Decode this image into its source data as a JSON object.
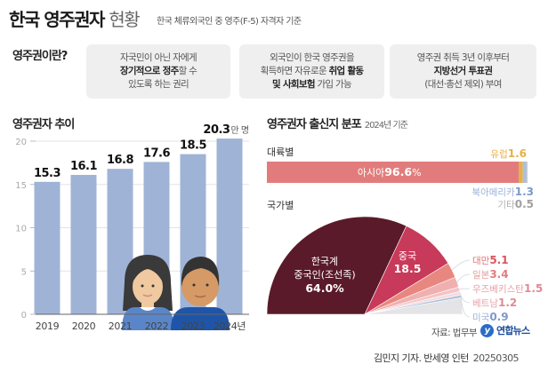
{
  "header": {
    "title_bold": "한국 영주권자",
    "title_light": "현황",
    "subtitle": "한국 체류외국인 중 영주(F-5) 자격자 기준"
  },
  "definition": {
    "label": "영주권이란?",
    "boxes": [
      {
        "line1": "자국민이 아닌 자에게",
        "line2_bold": "장기적으로 정주",
        "line2_rest": "할 수",
        "line3_bold": "",
        "line3_rest": "있도록 하는 권리"
      },
      {
        "line1": "외국인이 한국 영주권을",
        "line2_pre": "획득하면 자유로운 ",
        "line2_bold": "취업 활동",
        "line3_bold": "및 사회보험",
        "line3_rest": " 가입 가능"
      },
      {
        "line1": "영주권 취득 3년 이후부터",
        "line2_bold": "지방선거 투표권",
        "line3_rest": "(대선·총선 제외) 부여"
      }
    ]
  },
  "colors": {
    "bar": "#9fb3d6",
    "asia": "#e27c7c",
    "europe": "#e6b04a",
    "north_america": "#a9bfe3",
    "other": "#c9c9c9",
    "korean_chinese": "#5a1a2a",
    "china": "#c83a5a",
    "taiwan": "#e8877f",
    "japan": "#f0b0b0",
    "uzbekistan": "#f2c4c8",
    "vietnam": "#f6dcdc",
    "usa": "#aac0e0",
    "rest": "#e4e4e6"
  },
  "chart_data": [
    {
      "type": "bar",
      "title": "영주권자 추이",
      "categories": [
        "2019",
        "2020",
        "2021",
        "2022",
        "2023",
        "2024년"
      ],
      "values": [
        15.3,
        16.1,
        16.8,
        17.6,
        18.5,
        20.3
      ],
      "value_labels": [
        "15.3",
        "16.1",
        "16.8",
        "17.6",
        "18.5",
        "20.3"
      ],
      "last_unit": "만 명",
      "ylim": [
        0,
        20
      ],
      "yticks": [
        "0",
        "5",
        "10",
        "15",
        "20"
      ],
      "grid": true
    },
    {
      "type": "bar",
      "title": "영주권자 출신지 분포",
      "note": "2024년 기준",
      "section_label": "대륙별",
      "stacked": true,
      "series": [
        {
          "name": "아시아",
          "value": 96.6,
          "label": "96.6%"
        },
        {
          "name": "유럽",
          "value": 1.6,
          "label": "1.6"
        },
        {
          "name": "북아메리카",
          "value": 1.3,
          "label": "1.3"
        },
        {
          "name": "기타",
          "value": 0.5,
          "label": "0.5"
        }
      ]
    },
    {
      "type": "pie",
      "shape": "semicircle",
      "section_label": "국가별",
      "slices": [
        {
          "name": "한국계 중국인(조선족)",
          "name_line1": "한국계",
          "name_line2": "중국인(조선족)",
          "value": 64.0,
          "label": "64.0%"
        },
        {
          "name": "중국",
          "value": 18.5,
          "label": "18.5"
        },
        {
          "name": "대만",
          "value": 5.1,
          "label": "5.1"
        },
        {
          "name": "일본",
          "value": 3.4,
          "label": "3.4"
        },
        {
          "name": "우즈베키스탄",
          "value": 1.5,
          "label": "1.5"
        },
        {
          "name": "베트남",
          "value": 1.2,
          "label": "1.2"
        },
        {
          "name": "미국",
          "value": 0.9,
          "label": "0.9"
        },
        {
          "name": "",
          "value": 5.4,
          "label": ""
        }
      ]
    }
  ],
  "footer": {
    "source": "자료: 법무부",
    "logo_text": "연합뉴스",
    "byline": "김민지 기자. 반세영 인턴",
    "date": "20250305"
  }
}
